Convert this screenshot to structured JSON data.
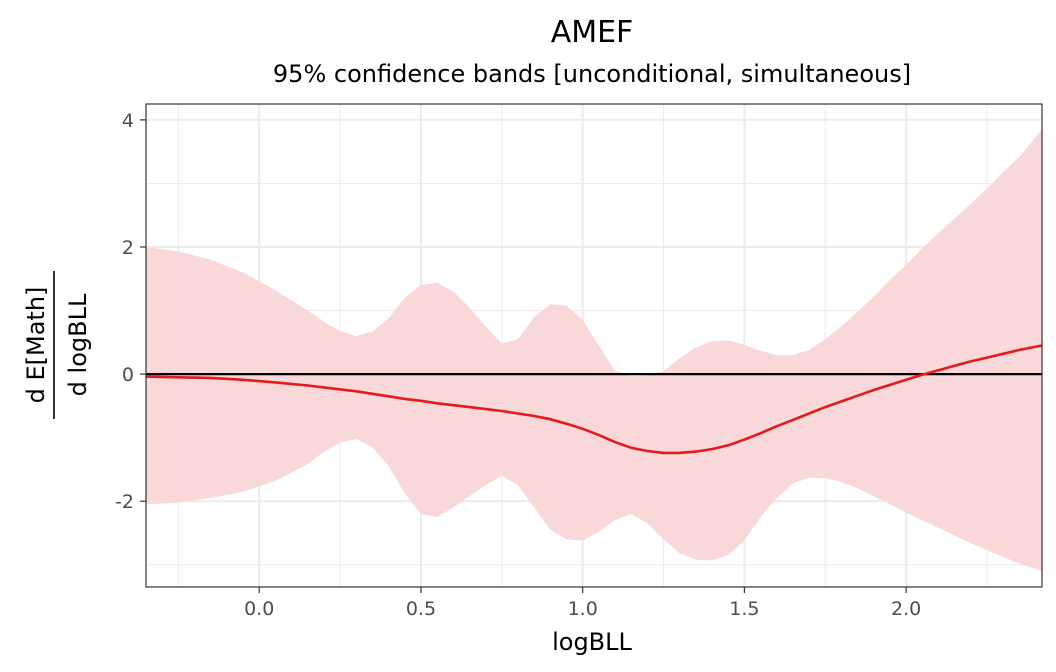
{
  "chart_data": {
    "type": "line",
    "title": "AMEF",
    "subtitle": "95% confidence bands [unconditional, simultaneous]",
    "xlabel": "logBLL",
    "ylabel_numerator": "d E[Math]",
    "ylabel_denominator": "d logBLL",
    "xlim": [
      -0.35,
      2.42
    ],
    "ylim": [
      -3.35,
      4.25
    ],
    "x_ticks": [
      0.0,
      0.5,
      1.0,
      1.5,
      2.0
    ],
    "x_tick_labels": [
      "0.0",
      "0.5",
      "1.0",
      "1.5",
      "2.0"
    ],
    "y_ticks": [
      -2,
      0,
      2,
      4
    ],
    "y_tick_labels": [
      "-2",
      "0",
      "2",
      "4"
    ],
    "grid": true,
    "reference_line_y": 0,
    "colors": {
      "line": "#e41a1c",
      "band": "#f9d8da",
      "reference": "#000000",
      "grid": "#ebebeb"
    },
    "x": [
      -0.35,
      -0.25,
      -0.15,
      -0.05,
      0.05,
      0.15,
      0.2,
      0.25,
      0.3,
      0.35,
      0.4,
      0.45,
      0.5,
      0.55,
      0.6,
      0.65,
      0.7,
      0.75,
      0.8,
      0.85,
      0.9,
      0.95,
      1.0,
      1.05,
      1.1,
      1.15,
      1.2,
      1.25,
      1.3,
      1.35,
      1.4,
      1.45,
      1.5,
      1.55,
      1.6,
      1.65,
      1.7,
      1.75,
      1.8,
      1.85,
      1.9,
      1.95,
      2.0,
      2.05,
      2.1,
      2.15,
      2.2,
      2.25,
      2.3,
      2.35,
      2.42
    ],
    "estimate": [
      -0.04,
      -0.05,
      -0.06,
      -0.09,
      -0.13,
      -0.18,
      -0.21,
      -0.24,
      -0.27,
      -0.31,
      -0.35,
      -0.39,
      -0.42,
      -0.46,
      -0.49,
      -0.52,
      -0.55,
      -0.58,
      -0.62,
      -0.66,
      -0.71,
      -0.78,
      -0.86,
      -0.96,
      -1.07,
      -1.16,
      -1.21,
      -1.24,
      -1.24,
      -1.22,
      -1.18,
      -1.12,
      -1.03,
      -0.93,
      -0.82,
      -0.72,
      -0.62,
      -0.52,
      -0.43,
      -0.34,
      -0.25,
      -0.17,
      -0.09,
      -0.01,
      0.06,
      0.13,
      0.2,
      0.26,
      0.32,
      0.38,
      0.45
    ],
    "upper": [
      2.0,
      1.93,
      1.8,
      1.6,
      1.32,
      1.0,
      0.82,
      0.68,
      0.6,
      0.67,
      0.88,
      1.2,
      1.4,
      1.44,
      1.3,
      1.05,
      0.75,
      0.48,
      0.55,
      0.9,
      1.1,
      1.08,
      0.85,
      0.45,
      0.05,
      -0.03,
      -0.02,
      0.05,
      0.25,
      0.42,
      0.52,
      0.53,
      0.46,
      0.37,
      0.3,
      0.3,
      0.38,
      0.55,
      0.75,
      0.98,
      1.22,
      1.48,
      1.72,
      1.98,
      2.22,
      2.45,
      2.68,
      2.92,
      3.18,
      3.42,
      3.85
    ],
    "lower": [
      -2.05,
      -2.02,
      -1.95,
      -1.85,
      -1.68,
      -1.42,
      -1.22,
      -1.08,
      -1.02,
      -1.15,
      -1.45,
      -1.88,
      -2.2,
      -2.25,
      -2.1,
      -1.92,
      -1.75,
      -1.6,
      -1.75,
      -2.1,
      -2.45,
      -2.6,
      -2.62,
      -2.48,
      -2.3,
      -2.2,
      -2.35,
      -2.6,
      -2.82,
      -2.92,
      -2.93,
      -2.85,
      -2.62,
      -2.25,
      -1.95,
      -1.72,
      -1.63,
      -1.64,
      -1.7,
      -1.8,
      -1.92,
      -2.05,
      -2.18,
      -2.3,
      -2.42,
      -2.54,
      -2.66,
      -2.77,
      -2.88,
      -2.98,
      -3.1
    ]
  }
}
